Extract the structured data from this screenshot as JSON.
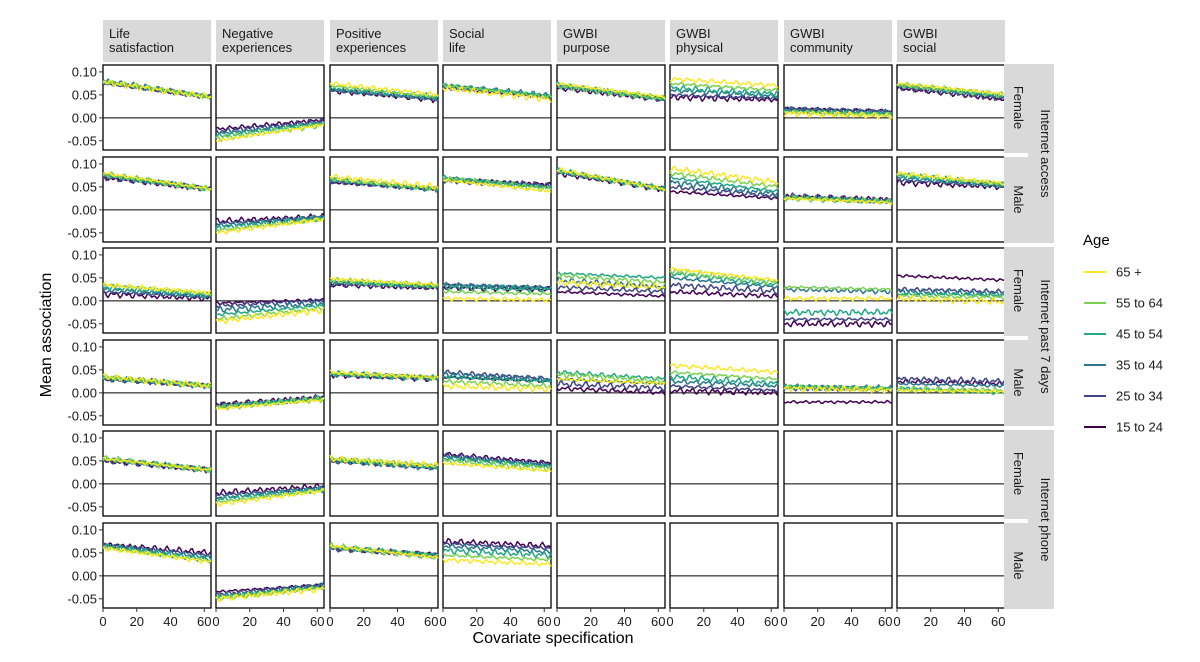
{
  "chart_data": {
    "type": "line",
    "x_label": "Covariate specification",
    "y_label": "Mean association",
    "x_range": [
      0,
      64
    ],
    "y_range": [
      -0.07,
      0.115
    ],
    "x_ticks": [
      "0",
      "20",
      "40",
      "60"
    ],
    "y_ticks": [
      "0.10",
      "0.05",
      "0.00",
      "-0.05"
    ],
    "x_tick_values": [
      0,
      20,
      40,
      60
    ],
    "y_tick_values": [
      0.1,
      0.05,
      0.0,
      -0.05
    ],
    "columns": [
      "Life\nsatisfaction",
      "Negative\nexperiences",
      "Positive\nexperiences",
      "Social\nlife",
      "GWBI\npurpose",
      "GWBI\nphysical",
      "GWBI\ncommunity",
      "GWBI\nsocial"
    ],
    "row_groups": [
      "Internet access",
      "Internet past 7 days",
      "Internet phone"
    ],
    "row_subs": [
      "Female",
      "Male"
    ],
    "legend": {
      "title": "Age",
      "placement": "right",
      "entries": [
        {
          "name": "65 +",
          "color": "#fde725"
        },
        {
          "name": "55 to 64",
          "color": "#7ad151"
        },
        {
          "name": "45 to 54",
          "color": "#22a884"
        },
        {
          "name": "35 to 44",
          "color": "#2a788e"
        },
        {
          "name": "25 to 34",
          "color": "#414487"
        },
        {
          "name": "15 to 24",
          "color": "#440154"
        }
      ]
    },
    "series_order": [
      "15 to 24",
      "25 to 34",
      "35 to 44",
      "45 to 54",
      "55 to 64",
      "65 +"
    ],
    "panels": [
      {
        "row": 0,
        "col": 0,
        "start": [
          0.075,
          0.078,
          0.08,
          0.078,
          0.08,
          0.078
        ],
        "end": [
          0.045,
          0.045,
          0.045,
          0.045,
          0.045,
          0.045
        ]
      },
      {
        "row": 0,
        "col": 1,
        "start": [
          -0.025,
          -0.03,
          -0.035,
          -0.04,
          -0.045,
          -0.05
        ],
        "end": [
          -0.005,
          -0.008,
          -0.01,
          -0.012,
          -0.015,
          -0.015
        ]
      },
      {
        "row": 0,
        "col": 2,
        "start": [
          0.06,
          0.06,
          0.062,
          0.065,
          0.07,
          0.075
        ],
        "end": [
          0.04,
          0.04,
          0.042,
          0.045,
          0.045,
          0.05
        ]
      },
      {
        "row": 0,
        "col": 3,
        "start": [
          0.065,
          0.068,
          0.07,
          0.072,
          0.07,
          0.065
        ],
        "end": [
          0.045,
          0.045,
          0.048,
          0.048,
          0.045,
          0.04
        ]
      },
      {
        "row": 0,
        "col": 4,
        "start": [
          0.065,
          0.068,
          0.07,
          0.072,
          0.07,
          0.075
        ],
        "end": [
          0.04,
          0.04,
          0.04,
          0.042,
          0.042,
          0.045
        ]
      },
      {
        "row": 0,
        "col": 5,
        "start": [
          0.045,
          0.05,
          0.06,
          0.065,
          0.075,
          0.085
        ],
        "end": [
          0.04,
          0.042,
          0.048,
          0.052,
          0.06,
          0.07
        ]
      },
      {
        "row": 0,
        "col": 6,
        "start": [
          0.02,
          0.02,
          0.018,
          0.015,
          0.012,
          0.01
        ],
        "end": [
          0.015,
          0.013,
          0.011,
          0.009,
          0.006,
          0.004
        ]
      },
      {
        "row": 0,
        "col": 7,
        "start": [
          0.065,
          0.068,
          0.07,
          0.072,
          0.072,
          0.075
        ],
        "end": [
          0.04,
          0.042,
          0.045,
          0.048,
          0.05,
          0.052
        ]
      },
      {
        "row": 1,
        "col": 0,
        "start": [
          0.07,
          0.072,
          0.075,
          0.075,
          0.078,
          0.08
        ],
        "end": [
          0.045,
          0.045,
          0.045,
          0.045,
          0.045,
          0.045
        ]
      },
      {
        "row": 1,
        "col": 1,
        "start": [
          -0.025,
          -0.03,
          -0.035,
          -0.04,
          -0.045,
          -0.05
        ],
        "end": [
          -0.015,
          -0.015,
          -0.015,
          -0.018,
          -0.02,
          -0.02
        ]
      },
      {
        "row": 1,
        "col": 2,
        "start": [
          0.06,
          0.062,
          0.065,
          0.065,
          0.068,
          0.072
        ],
        "end": [
          0.045,
          0.045,
          0.045,
          0.045,
          0.045,
          0.05
        ]
      },
      {
        "row": 1,
        "col": 3,
        "start": [
          0.065,
          0.065,
          0.068,
          0.07,
          0.068,
          0.065
        ],
        "end": [
          0.055,
          0.052,
          0.05,
          0.048,
          0.045,
          0.04
        ]
      },
      {
        "row": 1,
        "col": 4,
        "start": [
          0.08,
          0.082,
          0.085,
          0.085,
          0.085,
          0.088
        ],
        "end": [
          0.045,
          0.045,
          0.045,
          0.045,
          0.045,
          0.045
        ]
      },
      {
        "row": 1,
        "col": 5,
        "start": [
          0.04,
          0.05,
          0.06,
          0.07,
          0.08,
          0.09
        ],
        "end": [
          0.025,
          0.03,
          0.035,
          0.04,
          0.05,
          0.06
        ]
      },
      {
        "row": 1,
        "col": 6,
        "start": [
          0.03,
          0.03,
          0.028,
          0.027,
          0.026,
          0.025
        ],
        "end": [
          0.022,
          0.02,
          0.019,
          0.018,
          0.017,
          0.016
        ]
      },
      {
        "row": 1,
        "col": 7,
        "start": [
          0.06,
          0.065,
          0.07,
          0.075,
          0.078,
          0.08
        ],
        "end": [
          0.05,
          0.052,
          0.052,
          0.055,
          0.055,
          0.058
        ]
      },
      {
        "row": 2,
        "col": 0,
        "start": [
          0.015,
          0.02,
          0.025,
          0.03,
          0.035,
          0.035
        ],
        "end": [
          0.005,
          0.008,
          0.01,
          0.012,
          0.015,
          0.018
        ]
      },
      {
        "row": 2,
        "col": 1,
        "start": [
          -0.005,
          -0.01,
          -0.02,
          -0.03,
          -0.04,
          -0.045
        ],
        "end": [
          0.002,
          0.0,
          -0.005,
          -0.01,
          -0.015,
          -0.02
        ]
      },
      {
        "row": 2,
        "col": 2,
        "start": [
          0.035,
          0.038,
          0.04,
          0.042,
          0.045,
          0.048
        ],
        "end": [
          0.028,
          0.03,
          0.03,
          0.032,
          0.033,
          0.035
        ]
      },
      {
        "row": 2,
        "col": 3,
        "start": [
          0.03,
          0.035,
          0.035,
          0.03,
          0.02,
          0.005
        ],
        "end": [
          0.025,
          0.028,
          0.028,
          0.025,
          0.015,
          0.002
        ]
      },
      {
        "row": 2,
        "col": 4,
        "start": [
          0.02,
          0.03,
          0.045,
          0.06,
          0.055,
          0.04
        ],
        "end": [
          0.01,
          0.02,
          0.03,
          0.05,
          0.04,
          0.03
        ]
      },
      {
        "row": 2,
        "col": 5,
        "start": [
          0.02,
          0.035,
          0.05,
          0.06,
          0.065,
          0.07
        ],
        "end": [
          0.01,
          0.02,
          0.03,
          0.035,
          0.04,
          0.045
        ]
      },
      {
        "row": 2,
        "col": 6,
        "start": [
          -0.05,
          -0.04,
          0.025,
          -0.025,
          0.03,
          0.005
        ],
        "end": [
          -0.05,
          -0.04,
          0.02,
          -0.025,
          0.025,
          0.005
        ]
      },
      {
        "row": 2,
        "col": 7,
        "start": [
          0.055,
          0.025,
          0.02,
          0.015,
          0.01,
          0.005
        ],
        "end": [
          0.045,
          0.02,
          0.015,
          0.012,
          0.008,
          -0.002
        ]
      },
      {
        "row": 3,
        "col": 0,
        "start": [
          0.03,
          0.03,
          0.032,
          0.033,
          0.035,
          0.035
        ],
        "end": [
          0.015,
          0.015,
          0.015,
          0.015,
          0.015,
          0.015
        ]
      },
      {
        "row": 3,
        "col": 1,
        "start": [
          -0.025,
          -0.028,
          -0.03,
          -0.03,
          -0.032,
          -0.035
        ],
        "end": [
          -0.01,
          -0.01,
          -0.012,
          -0.012,
          -0.013,
          -0.015
        ]
      },
      {
        "row": 3,
        "col": 2,
        "start": [
          0.04,
          0.04,
          0.04,
          0.042,
          0.042,
          0.045
        ],
        "end": [
          0.03,
          0.03,
          0.032,
          0.032,
          0.033,
          0.033
        ]
      },
      {
        "row": 3,
        "col": 3,
        "start": [
          0.035,
          0.045,
          0.04,
          0.035,
          0.025,
          0.015
        ],
        "end": [
          0.025,
          0.03,
          0.028,
          0.025,
          0.015,
          0.008
        ]
      },
      {
        "row": 3,
        "col": 4,
        "start": [
          0.01,
          0.02,
          0.03,
          0.045,
          0.04,
          0.03
        ],
        "end": [
          0.0,
          0.01,
          0.02,
          0.03,
          0.025,
          0.02
        ]
      },
      {
        "row": 3,
        "col": 5,
        "start": [
          0.005,
          0.015,
          0.025,
          0.035,
          0.045,
          0.06
        ],
        "end": [
          0.0,
          0.005,
          0.015,
          0.02,
          0.03,
          0.045
        ]
      },
      {
        "row": 3,
        "col": 6,
        "start": [
          -0.02,
          0.01,
          0.012,
          0.015,
          0.012,
          0.01
        ],
        "end": [
          -0.02,
          0.008,
          0.01,
          0.01,
          0.008,
          0.006
        ]
      },
      {
        "row": 3,
        "col": 7,
        "start": [
          0.025,
          0.03,
          0.02,
          0.01,
          0.008,
          0.005
        ],
        "end": [
          0.02,
          0.025,
          0.015,
          0.0,
          0.005,
          0.003
        ]
      },
      {
        "row": 4,
        "col": 0,
        "start": [
          0.05,
          0.052,
          0.055,
          0.055,
          0.055,
          0.055
        ],
        "end": [
          0.03,
          0.03,
          0.03,
          0.03,
          0.03,
          0.03
        ]
      },
      {
        "row": 4,
        "col": 1,
        "start": [
          -0.02,
          -0.025,
          -0.03,
          -0.035,
          -0.04,
          -0.045
        ],
        "end": [
          -0.005,
          -0.008,
          -0.01,
          -0.012,
          -0.013,
          -0.015
        ]
      },
      {
        "row": 4,
        "col": 2,
        "start": [
          0.05,
          0.05,
          0.052,
          0.052,
          0.055,
          0.055
        ],
        "end": [
          0.035,
          0.035,
          0.035,
          0.035,
          0.04,
          0.04
        ]
      },
      {
        "row": 4,
        "col": 3,
        "start": [
          0.065,
          0.062,
          0.06,
          0.055,
          0.05,
          0.045
        ],
        "end": [
          0.045,
          0.042,
          0.04,
          0.038,
          0.033,
          0.028
        ]
      },
      {
        "row": 5,
        "col": 0,
        "start": [
          0.068,
          0.068,
          0.066,
          0.065,
          0.062,
          0.06
        ],
        "end": [
          0.05,
          0.045,
          0.04,
          0.035,
          0.032,
          0.03
        ]
      },
      {
        "row": 5,
        "col": 1,
        "start": [
          -0.035,
          -0.04,
          -0.045,
          -0.045,
          -0.05,
          -0.05
        ],
        "end": [
          -0.02,
          -0.02,
          -0.022,
          -0.025,
          -0.025,
          -0.028
        ]
      },
      {
        "row": 5,
        "col": 2,
        "start": [
          0.06,
          0.06,
          0.062,
          0.062,
          0.065,
          0.065
        ],
        "end": [
          0.045,
          0.045,
          0.045,
          0.045,
          0.04,
          0.04
        ]
      },
      {
        "row": 5,
        "col": 3,
        "start": [
          0.075,
          0.07,
          0.065,
          0.055,
          0.045,
          0.035
        ],
        "end": [
          0.065,
          0.06,
          0.052,
          0.045,
          0.035,
          0.025
        ]
      }
    ]
  }
}
